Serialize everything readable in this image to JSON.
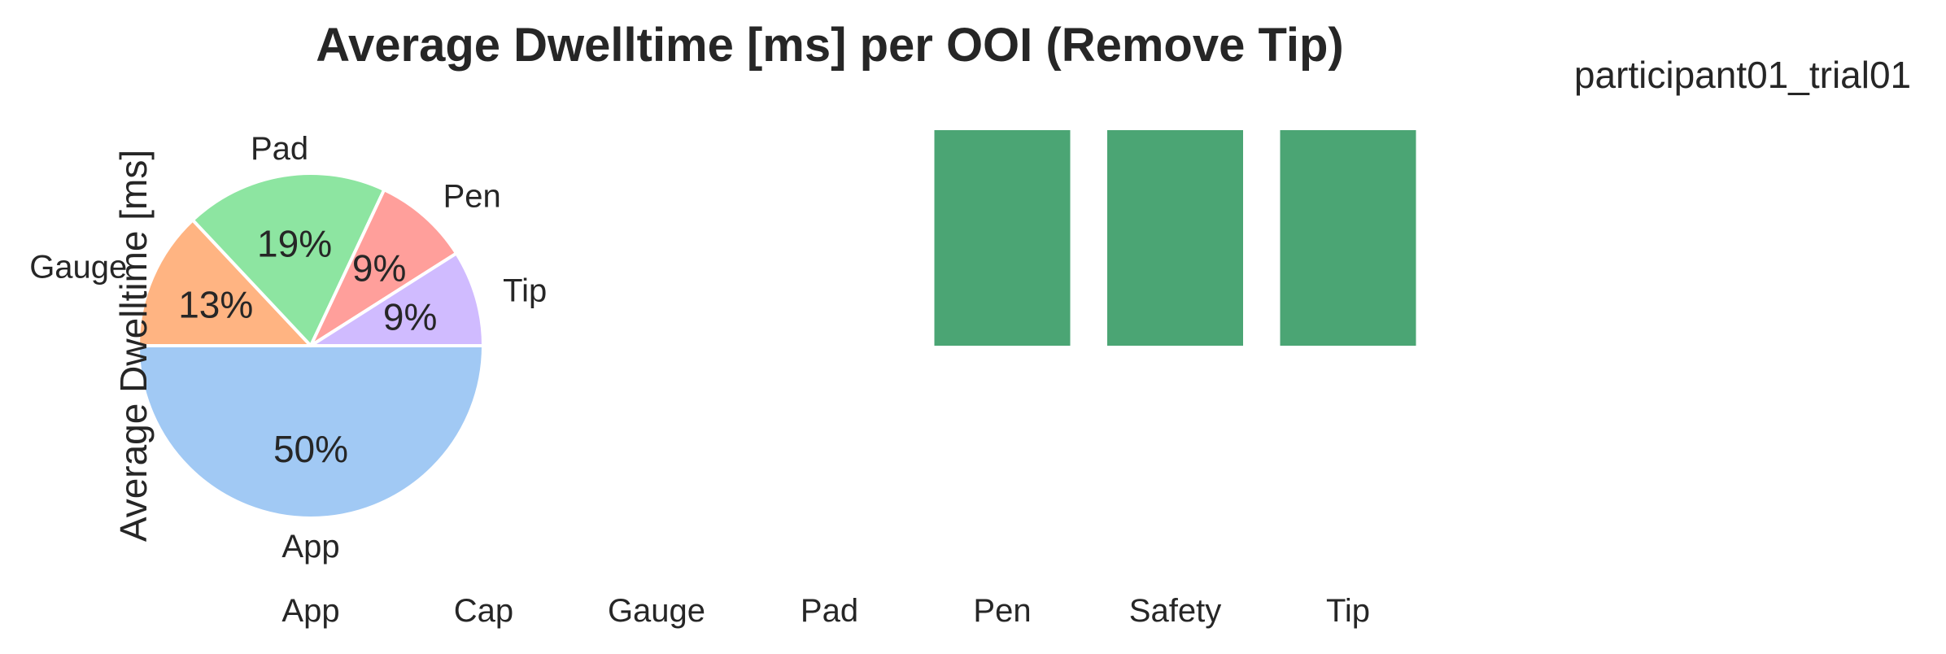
{
  "chart_data": [
    {
      "type": "bar",
      "title": "Average Dwelltime [ms] per OOI (Remove Tip)",
      "side_label": "participant01_trial01",
      "ylabel": "Average Dwelltime [ms]",
      "xlabel": "",
      "categories": [
        "App",
        "Cap",
        "Gauge",
        "Pad",
        "Pen",
        "Safety",
        "Tip"
      ],
      "values": [
        0,
        0,
        0,
        0,
        1,
        1,
        1
      ],
      "bar_color": "#4ba574",
      "ylim": [
        0,
        1
      ],
      "grid": false
    },
    {
      "type": "pie",
      "labels": [
        "App",
        "Gauge",
        "Pad",
        "Pen",
        "Tip"
      ],
      "values": [
        50,
        13,
        19,
        9,
        9
      ],
      "percent_labels": [
        "50%",
        "13%",
        "19%",
        "9%",
        "9%"
      ],
      "colors": [
        "#a1c9f4",
        "#ffb482",
        "#8de5a1",
        "#ff9f9b",
        "#d0bbff"
      ],
      "startangle": 0,
      "counterclock": false
    }
  ]
}
